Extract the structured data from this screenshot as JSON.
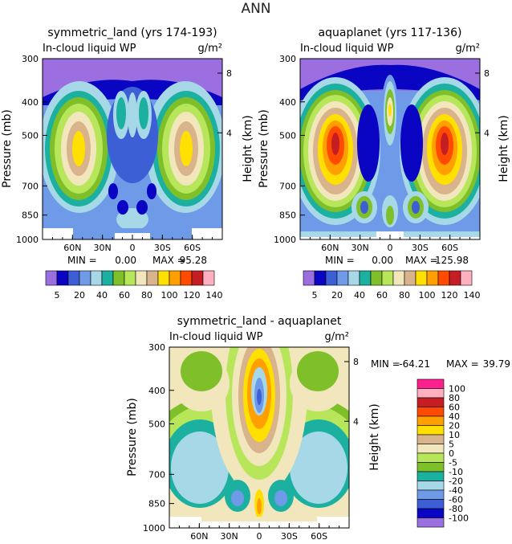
{
  "figure_title": "ANN",
  "colors": {
    "spectrum_15": [
      "#9b6fe0",
      "#0a05c2",
      "#3c5fd6",
      "#6f9ae8",
      "#a7d8e8",
      "#1bb0a0",
      "#7fbf2a",
      "#b7e65a",
      "#f2e6bd",
      "#d8b38c",
      "#ffe000",
      "#ff9f00",
      "#ff4a00",
      "#c41e24",
      "#ffb0c0",
      "#ff2090"
    ],
    "diff_17": [
      "#9b6fe0",
      "#0a05c2",
      "#3c5fd6",
      "#6f9ae8",
      "#a7d8e8",
      "#1bb0a0",
      "#7fbf2a",
      "#b7e65a",
      "#f2e6bd",
      "#d8b38c",
      "#ffe000",
      "#ff9f00",
      "#ff4a00",
      "#c41e24",
      "#ffb0c0",
      "#ff2090"
    ]
  },
  "chart_data": [
    {
      "type": "heatmap",
      "title": "symmetric_land (yrs 174-193)",
      "subtitle_left": "In-cloud liquid WP",
      "units": "g/m²",
      "ylabel": "Pressure (mb)",
      "ylabel_right": "Height (km)",
      "y_ticks": [
        "300",
        "400",
        "500",
        "700",
        "850",
        "1000"
      ],
      "y_right_ticks": [
        "8",
        "4"
      ],
      "x_ticks": [
        "60N",
        "30N",
        "0",
        "30S",
        "60S"
      ],
      "min_label": "MIN =",
      "min_value": "0.00",
      "max_label": "MAX =",
      "max_value": "95.28",
      "levels": [
        5,
        10,
        15,
        20,
        30,
        40,
        50,
        60,
        70,
        80,
        90,
        100,
        110,
        120,
        130,
        140
      ],
      "colorbar_labels": [
        "5",
        "20",
        "40",
        "60",
        "80",
        "100",
        "120",
        "140"
      ],
      "features": {
        "left_lobe_peak": 95.28,
        "right_lobe_peak": 95.28,
        "center_band": 40,
        "upper_cap": 5
      }
    },
    {
      "type": "heatmap",
      "title": "aquaplanet (yrs 117-136)",
      "subtitle_left": "In-cloud liquid WP",
      "units": "g/m²",
      "ylabel": "Pressure (mb)",
      "ylabel_right": "Height (km)",
      "y_ticks": [
        "300",
        "400",
        "500",
        "700",
        "850",
        "1000"
      ],
      "y_right_ticks": [
        "8",
        "4"
      ],
      "x_ticks": [
        "60N",
        "30N",
        "0",
        "30S",
        "60S"
      ],
      "min_label": "MIN =",
      "min_value": "0.00",
      "max_label": "MAX =",
      "max_value": "125.98",
      "levels": [
        5,
        10,
        15,
        20,
        30,
        40,
        50,
        60,
        70,
        80,
        90,
        100,
        110,
        120,
        130,
        140
      ],
      "colorbar_labels": [
        "5",
        "20",
        "40",
        "60",
        "80",
        "100",
        "120",
        "140"
      ],
      "features": {
        "left_lobe_peak": 125.98,
        "right_lobe_peak": 125.98,
        "center_band": 60,
        "upper_cap": 5
      }
    },
    {
      "type": "heatmap",
      "title": "symmetric_land - aquaplanet",
      "subtitle_left": "In-cloud liquid WP",
      "units": "g/m²",
      "ylabel": "Pressure (mb)",
      "ylabel_right": "Height (km)",
      "y_ticks": [
        "300",
        "400",
        "500",
        "700",
        "850",
        "1000"
      ],
      "y_right_ticks": [
        "8",
        "4"
      ],
      "x_ticks": [
        "60N",
        "30N",
        "0",
        "30S",
        "60S"
      ],
      "min_label": "MIN =",
      "min_value": "-64.21",
      "max_label": "MAX =",
      "max_value": "39.79",
      "levels": [
        -100,
        -80,
        -60,
        -40,
        -20,
        -10,
        -5,
        0,
        5,
        10,
        20,
        40,
        60,
        80,
        100
      ],
      "colorbar_labels": [
        "100",
        "80",
        "60",
        "40",
        "20",
        "10",
        "5",
        "0",
        "-5",
        "-10",
        "-20",
        "-40",
        "-60",
        "-80",
        "-100"
      ]
    }
  ]
}
